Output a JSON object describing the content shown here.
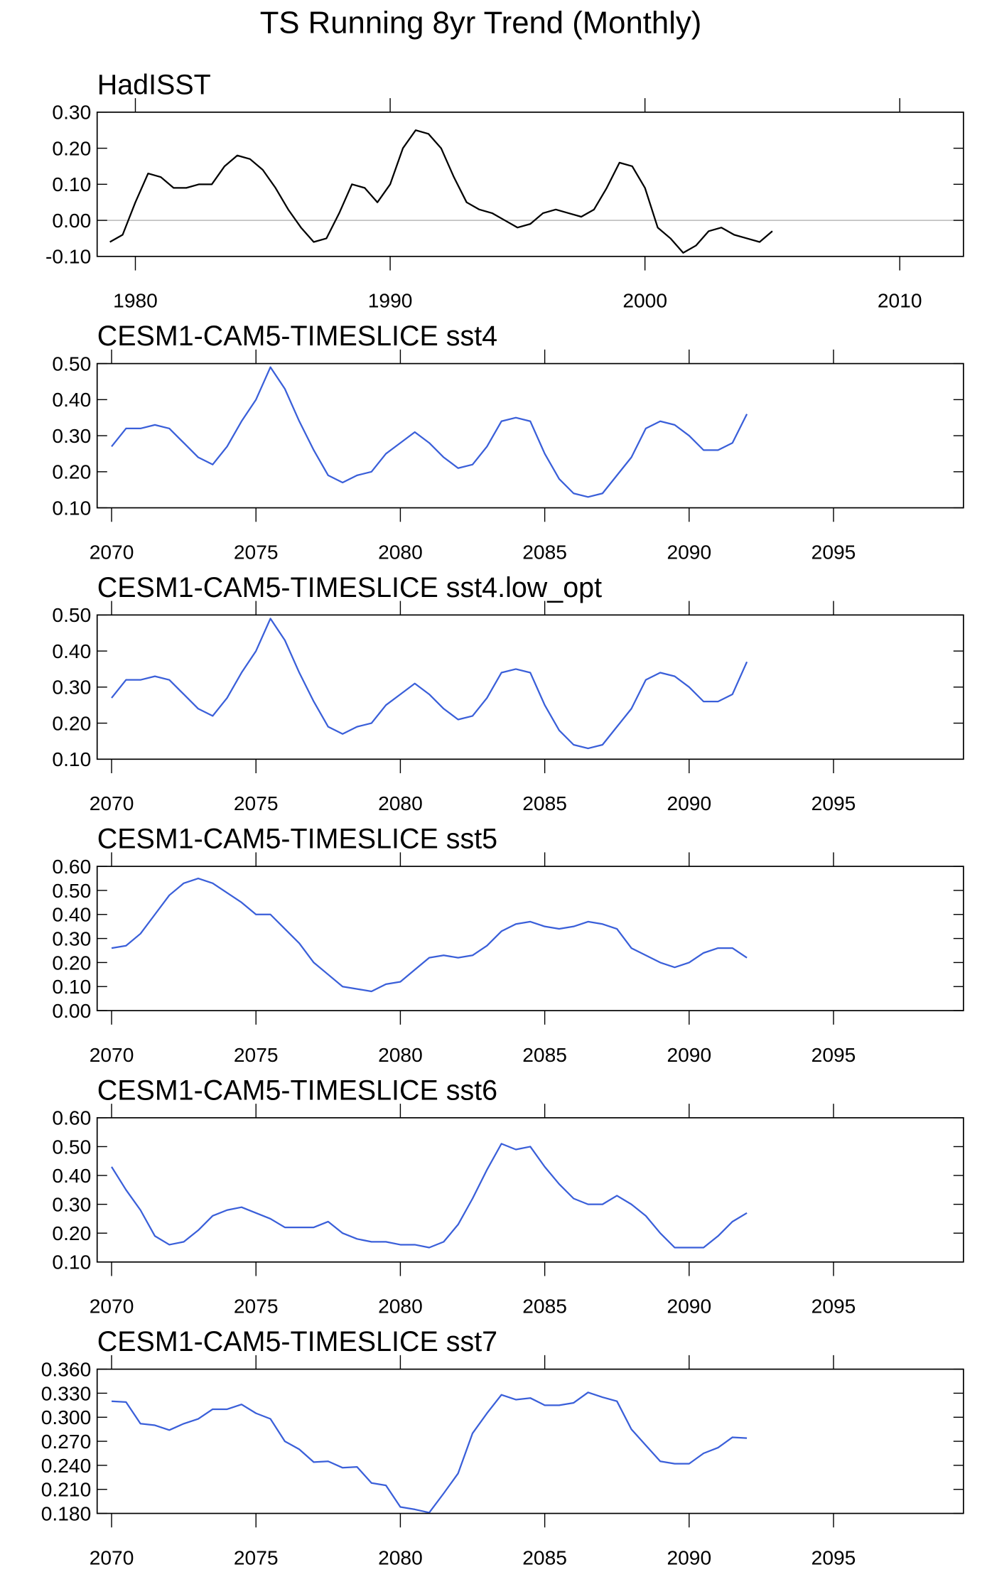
{
  "title": "TS Running 8yr Trend (Monthly)",
  "chart_data": [
    {
      "type": "line",
      "title": "HadISST",
      "color": "#000000",
      "reference_line": 0,
      "xlim": [
        1978.5,
        2012.5
      ],
      "xticks": [
        1980,
        1990,
        2000,
        2010
      ],
      "ylim": [
        -0.1,
        0.3
      ],
      "yticks": [
        {
          "value": -0.1,
          "label": "-0.10"
        },
        {
          "value": 0,
          "label": "0.00"
        },
        {
          "value": 0.1,
          "label": "0.10"
        },
        {
          "value": 0.2,
          "label": "0.20"
        },
        {
          "value": 0.3,
          "label": "0.30"
        }
      ],
      "x": [
        1979,
        1979.5,
        1980,
        1980.5,
        1981,
        1981.5,
        1982,
        1982.5,
        1983,
        1983.5,
        1984,
        1984.5,
        1985,
        1985.5,
        1986,
        1986.5,
        1987,
        1987.5,
        1988,
        1988.5,
        1989,
        1989.5,
        1990,
        1990.5,
        1991,
        1991.5,
        1992,
        1992.5,
        1993,
        1993.5,
        1994,
        1994.5,
        1995,
        1995.5,
        1996,
        1996.5,
        1997,
        1997.5,
        1998,
        1998.5,
        1999,
        1999.5,
        2000,
        2000.5,
        2001,
        2001.5,
        2002,
        2002.5,
        2003,
        2003.5,
        2004,
        2004.5,
        2005
      ],
      "values": [
        -0.06,
        -0.04,
        0.05,
        0.13,
        0.12,
        0.09,
        0.09,
        0.1,
        0.1,
        0.15,
        0.18,
        0.17,
        0.14,
        0.09,
        0.03,
        -0.02,
        -0.06,
        -0.05,
        0.02,
        0.1,
        0.09,
        0.05,
        0.1,
        0.2,
        0.25,
        0.24,
        0.2,
        0.12,
        0.05,
        0.03,
        0.02,
        0.0,
        -0.02,
        -0.01,
        0.02,
        0.03,
        0.02,
        0.01,
        0.03,
        0.09,
        0.16,
        0.15,
        0.09,
        -0.02,
        -0.05,
        -0.09,
        -0.07,
        -0.03,
        -0.02,
        -0.04,
        -0.05,
        -0.06,
        -0.03
      ]
    },
    {
      "type": "line",
      "title": "CESM1-CAM5-TIMESLICE sst4",
      "color": "#3a5fd9",
      "xlim": [
        2069.5,
        2099.5
      ],
      "xticks": [
        2070,
        2075,
        2080,
        2085,
        2090,
        2095
      ],
      "ylim": [
        0.1,
        0.5
      ],
      "yticks": [
        {
          "value": 0.1,
          "label": "0.10"
        },
        {
          "value": 0.2,
          "label": "0.20"
        },
        {
          "value": 0.3,
          "label": "0.30"
        },
        {
          "value": 0.4,
          "label": "0.40"
        },
        {
          "value": 0.5,
          "label": "0.50"
        }
      ],
      "x": [
        2070,
        2070.5,
        2071,
        2071.5,
        2072,
        2072.5,
        2073,
        2073.5,
        2074,
        2074.5,
        2075,
        2075.5,
        2076,
        2076.5,
        2077,
        2077.5,
        2078,
        2078.5,
        2079,
        2079.5,
        2080,
        2080.5,
        2081,
        2081.5,
        2082,
        2082.5,
        2083,
        2083.5,
        2084,
        2084.5,
        2085,
        2085.5,
        2086,
        2086.5,
        2087,
        2087.5,
        2088,
        2088.5,
        2089,
        2089.5,
        2090,
        2090.5,
        2091,
        2091.5,
        2092
      ],
      "values": [
        0.27,
        0.32,
        0.32,
        0.33,
        0.32,
        0.28,
        0.24,
        0.22,
        0.27,
        0.34,
        0.4,
        0.49,
        0.43,
        0.34,
        0.26,
        0.19,
        0.17,
        0.19,
        0.2,
        0.25,
        0.28,
        0.31,
        0.28,
        0.24,
        0.21,
        0.22,
        0.27,
        0.34,
        0.35,
        0.34,
        0.25,
        0.18,
        0.14,
        0.13,
        0.14,
        0.19,
        0.24,
        0.32,
        0.34,
        0.33,
        0.3,
        0.26,
        0.26,
        0.28,
        0.36
      ]
    },
    {
      "type": "line",
      "title": "CESM1-CAM5-TIMESLICE sst4.low_opt",
      "color": "#3a5fd9",
      "xlim": [
        2069.5,
        2099.5
      ],
      "xticks": [
        2070,
        2075,
        2080,
        2085,
        2090,
        2095
      ],
      "ylim": [
        0.1,
        0.5
      ],
      "yticks": [
        {
          "value": 0.1,
          "label": "0.10"
        },
        {
          "value": 0.2,
          "label": "0.20"
        },
        {
          "value": 0.3,
          "label": "0.30"
        },
        {
          "value": 0.4,
          "label": "0.40"
        },
        {
          "value": 0.5,
          "label": "0.50"
        }
      ],
      "x": [
        2070,
        2070.5,
        2071,
        2071.5,
        2072,
        2072.5,
        2073,
        2073.5,
        2074,
        2074.5,
        2075,
        2075.5,
        2076,
        2076.5,
        2077,
        2077.5,
        2078,
        2078.5,
        2079,
        2079.5,
        2080,
        2080.5,
        2081,
        2081.5,
        2082,
        2082.5,
        2083,
        2083.5,
        2084,
        2084.5,
        2085,
        2085.5,
        2086,
        2086.5,
        2087,
        2087.5,
        2088,
        2088.5,
        2089,
        2089.5,
        2090,
        2090.5,
        2091,
        2091.5,
        2092
      ],
      "values": [
        0.27,
        0.32,
        0.32,
        0.33,
        0.32,
        0.28,
        0.24,
        0.22,
        0.27,
        0.34,
        0.4,
        0.49,
        0.43,
        0.34,
        0.26,
        0.19,
        0.17,
        0.19,
        0.2,
        0.25,
        0.28,
        0.31,
        0.28,
        0.24,
        0.21,
        0.22,
        0.27,
        0.34,
        0.35,
        0.34,
        0.25,
        0.18,
        0.14,
        0.13,
        0.14,
        0.19,
        0.24,
        0.32,
        0.34,
        0.33,
        0.3,
        0.26,
        0.26,
        0.28,
        0.37
      ]
    },
    {
      "type": "line",
      "title": "CESM1-CAM5-TIMESLICE sst5",
      "color": "#3a5fd9",
      "xlim": [
        2069.5,
        2099.5
      ],
      "xticks": [
        2070,
        2075,
        2080,
        2085,
        2090,
        2095
      ],
      "ylim": [
        0,
        0.6
      ],
      "yticks": [
        {
          "value": 0,
          "label": "0.00"
        },
        {
          "value": 0.1,
          "label": "0.10"
        },
        {
          "value": 0.2,
          "label": "0.20"
        },
        {
          "value": 0.3,
          "label": "0.30"
        },
        {
          "value": 0.4,
          "label": "0.40"
        },
        {
          "value": 0.5,
          "label": "0.50"
        },
        {
          "value": 0.6,
          "label": "0.60"
        }
      ],
      "x": [
        2070,
        2070.5,
        2071,
        2071.5,
        2072,
        2072.5,
        2073,
        2073.5,
        2074,
        2074.5,
        2075,
        2075.5,
        2076,
        2076.5,
        2077,
        2077.5,
        2078,
        2078.5,
        2079,
        2079.5,
        2080,
        2080.5,
        2081,
        2081.5,
        2082,
        2082.5,
        2083,
        2083.5,
        2084,
        2084.5,
        2085,
        2085.5,
        2086,
        2086.5,
        2087,
        2087.5,
        2088,
        2088.5,
        2089,
        2089.5,
        2090,
        2090.5,
        2091,
        2091.5,
        2092
      ],
      "values": [
        0.26,
        0.27,
        0.32,
        0.4,
        0.48,
        0.53,
        0.55,
        0.53,
        0.49,
        0.45,
        0.4,
        0.4,
        0.34,
        0.28,
        0.2,
        0.15,
        0.1,
        0.09,
        0.08,
        0.11,
        0.12,
        0.17,
        0.22,
        0.23,
        0.22,
        0.23,
        0.27,
        0.33,
        0.36,
        0.37,
        0.35,
        0.34,
        0.35,
        0.37,
        0.36,
        0.34,
        0.26,
        0.23,
        0.2,
        0.18,
        0.2,
        0.24,
        0.26,
        0.26,
        0.22
      ]
    },
    {
      "type": "line",
      "title": "CESM1-CAM5-TIMESLICE sst6",
      "color": "#3a5fd9",
      "xlim": [
        2069.5,
        2099.5
      ],
      "xticks": [
        2070,
        2075,
        2080,
        2085,
        2090,
        2095
      ],
      "ylim": [
        0.1,
        0.6
      ],
      "yticks": [
        {
          "value": 0.1,
          "label": "0.10"
        },
        {
          "value": 0.2,
          "label": "0.20"
        },
        {
          "value": 0.3,
          "label": "0.30"
        },
        {
          "value": 0.4,
          "label": "0.40"
        },
        {
          "value": 0.5,
          "label": "0.50"
        },
        {
          "value": 0.6,
          "label": "0.60"
        }
      ],
      "x": [
        2070,
        2070.5,
        2071,
        2071.5,
        2072,
        2072.5,
        2073,
        2073.5,
        2074,
        2074.5,
        2075,
        2075.5,
        2076,
        2076.5,
        2077,
        2077.5,
        2078,
        2078.5,
        2079,
        2079.5,
        2080,
        2080.5,
        2081,
        2081.5,
        2082,
        2082.5,
        2083,
        2083.5,
        2084,
        2084.5,
        2085,
        2085.5,
        2086,
        2086.5,
        2087,
        2087.5,
        2088,
        2088.5,
        2089,
        2089.5,
        2090,
        2090.5,
        2091,
        2091.5,
        2092
      ],
      "values": [
        0.43,
        0.35,
        0.28,
        0.19,
        0.16,
        0.17,
        0.21,
        0.26,
        0.28,
        0.29,
        0.27,
        0.25,
        0.22,
        0.22,
        0.22,
        0.24,
        0.2,
        0.18,
        0.17,
        0.17,
        0.16,
        0.16,
        0.15,
        0.17,
        0.23,
        0.32,
        0.42,
        0.51,
        0.49,
        0.5,
        0.43,
        0.37,
        0.32,
        0.3,
        0.3,
        0.33,
        0.3,
        0.26,
        0.2,
        0.15,
        0.15,
        0.15,
        0.19,
        0.24,
        0.27
      ]
    },
    {
      "type": "line",
      "title": "CESM1-CAM5-TIMESLICE sst7",
      "color": "#3a5fd9",
      "xlim": [
        2069.5,
        2099.5
      ],
      "xticks": [
        2070,
        2075,
        2080,
        2085,
        2090,
        2095
      ],
      "ylim": [
        0.18,
        0.36
      ],
      "yticks": [
        {
          "value": 0.18,
          "label": "0.180"
        },
        {
          "value": 0.21,
          "label": "0.210"
        },
        {
          "value": 0.24,
          "label": "0.240"
        },
        {
          "value": 0.27,
          "label": "0.270"
        },
        {
          "value": 0.3,
          "label": "0.300"
        },
        {
          "value": 0.33,
          "label": "0.330"
        },
        {
          "value": 0.36,
          "label": "0.360"
        }
      ],
      "x": [
        2070,
        2070.5,
        2071,
        2071.5,
        2072,
        2072.5,
        2073,
        2073.5,
        2074,
        2074.5,
        2075,
        2075.5,
        2076,
        2076.5,
        2077,
        2077.5,
        2078,
        2078.5,
        2079,
        2079.5,
        2080,
        2080.5,
        2081,
        2081.5,
        2082,
        2082.5,
        2083,
        2083.5,
        2084,
        2084.5,
        2085,
        2085.5,
        2086,
        2086.5,
        2087,
        2087.5,
        2088,
        2088.5,
        2089,
        2089.5,
        2090,
        2090.5,
        2091,
        2091.5,
        2092
      ],
      "values": [
        0.32,
        0.319,
        0.292,
        0.29,
        0.284,
        0.292,
        0.298,
        0.31,
        0.31,
        0.316,
        0.305,
        0.298,
        0.27,
        0.26,
        0.244,
        0.245,
        0.237,
        0.238,
        0.218,
        0.215,
        0.188,
        0.185,
        0.181,
        0.205,
        0.23,
        0.28,
        0.305,
        0.328,
        0.322,
        0.324,
        0.315,
        0.315,
        0.318,
        0.331,
        0.325,
        0.32,
        0.285,
        0.265,
        0.245,
        0.242,
        0.242,
        0.255,
        0.262,
        0.275,
        0.274
      ]
    }
  ]
}
